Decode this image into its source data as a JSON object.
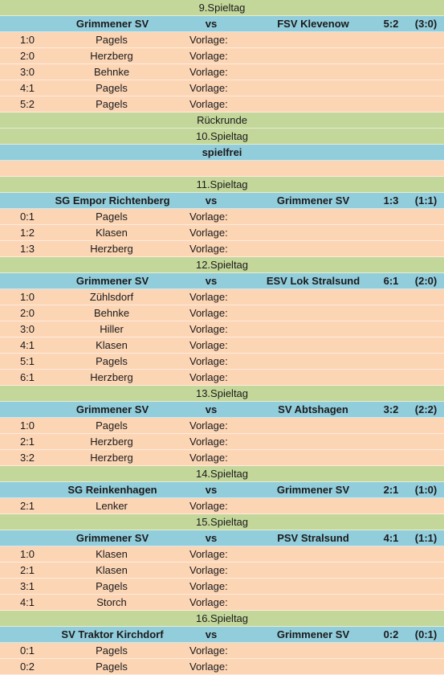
{
  "blocks": [
    {
      "type": "header",
      "text": "9.Spieltag"
    },
    {
      "type": "match",
      "home": "Grimmener SV",
      "vs": "vs",
      "away": "FSV Klevenow",
      "score": "5:2",
      "half": "(3:0)"
    },
    {
      "type": "goal",
      "score": "1:0",
      "scorer": "Pagels",
      "assist": "Vorlage:"
    },
    {
      "type": "goal",
      "score": "2:0",
      "scorer": "Herzberg",
      "assist": "Vorlage:"
    },
    {
      "type": "goal",
      "score": "3:0",
      "scorer": "Behnke",
      "assist": "Vorlage:"
    },
    {
      "type": "goal",
      "score": "4:1",
      "scorer": "Pagels",
      "assist": "Vorlage:"
    },
    {
      "type": "goal",
      "score": "5:2",
      "scorer": "Pagels",
      "assist": "Vorlage:"
    },
    {
      "type": "header",
      "text": "Rückrunde"
    },
    {
      "type": "header",
      "text": "10.Spieltag"
    },
    {
      "type": "bye",
      "text": "spielfrei"
    },
    {
      "type": "blank"
    },
    {
      "type": "header",
      "text": "11.Spieltag"
    },
    {
      "type": "match",
      "home": "SG Empor Richtenberg",
      "vs": "vs",
      "away": "Grimmener SV",
      "score": "1:3",
      "half": "(1:1)"
    },
    {
      "type": "goal",
      "score": "0:1",
      "scorer": "Pagels",
      "assist": "Vorlage:"
    },
    {
      "type": "goal",
      "score": "1:2",
      "scorer": "Klasen",
      "assist": "Vorlage:"
    },
    {
      "type": "goal",
      "score": "1:3",
      "scorer": "Herzberg",
      "assist": "Vorlage:"
    },
    {
      "type": "header",
      "text": "12.Spieltag"
    },
    {
      "type": "match",
      "home": "Grimmener SV",
      "vs": "vs",
      "away": "ESV Lok Stralsund",
      "score": "6:1",
      "half": "(2:0)"
    },
    {
      "type": "goal",
      "score": "1:0",
      "scorer": "Zühlsdorf",
      "assist": "Vorlage:"
    },
    {
      "type": "goal",
      "score": "2:0",
      "scorer": "Behnke",
      "assist": "Vorlage:"
    },
    {
      "type": "goal",
      "score": "3:0",
      "scorer": "Hiller",
      "assist": "Vorlage:"
    },
    {
      "type": "goal",
      "score": "4:1",
      "scorer": "Klasen",
      "assist": "Vorlage:"
    },
    {
      "type": "goal",
      "score": "5:1",
      "scorer": "Pagels",
      "assist": "Vorlage:"
    },
    {
      "type": "goal",
      "score": "6:1",
      "scorer": "Herzberg",
      "assist": "Vorlage:"
    },
    {
      "type": "header",
      "text": "13.Spieltag"
    },
    {
      "type": "match",
      "home": "Grimmener SV",
      "vs": "vs",
      "away": "SV Abtshagen",
      "score": "3:2",
      "half": "(2:2)"
    },
    {
      "type": "goal",
      "score": "1:0",
      "scorer": "Pagels",
      "assist": "Vorlage:"
    },
    {
      "type": "goal",
      "score": "2:1",
      "scorer": "Herzberg",
      "assist": "Vorlage:"
    },
    {
      "type": "goal",
      "score": "3:2",
      "scorer": "Herzberg",
      "assist": "Vorlage:"
    },
    {
      "type": "header",
      "text": "14.Spieltag"
    },
    {
      "type": "match",
      "home": "SG Reinkenhagen",
      "vs": "vs",
      "away": "Grimmener SV",
      "score": "2:1",
      "half": "(1:0)"
    },
    {
      "type": "goal",
      "score": "2:1",
      "scorer": "Lenker",
      "assist": "Vorlage:"
    },
    {
      "type": "header",
      "text": "15.Spieltag"
    },
    {
      "type": "match",
      "home": "Grimmener SV",
      "vs": "vs",
      "away": "PSV Stralsund",
      "score": "4:1",
      "half": "(1:1)"
    },
    {
      "type": "goal",
      "score": "1:0",
      "scorer": "Klasen",
      "assist": "Vorlage:"
    },
    {
      "type": "goal",
      "score": "2:1",
      "scorer": "Klasen",
      "assist": "Vorlage:"
    },
    {
      "type": "goal",
      "score": "3:1",
      "scorer": "Pagels",
      "assist": "Vorlage:"
    },
    {
      "type": "goal",
      "score": "4:1",
      "scorer": "Storch",
      "assist": "Vorlage:"
    },
    {
      "type": "header",
      "text": "16.Spieltag"
    },
    {
      "type": "match",
      "home": "SV Traktor Kirchdorf",
      "vs": "vs",
      "away": "Grimmener SV",
      "score": "0:2",
      "half": "(0:1)"
    },
    {
      "type": "goal",
      "score": "0:1",
      "scorer": "Pagels",
      "assist": "Vorlage:"
    },
    {
      "type": "goal",
      "score": "0:2",
      "scorer": "Pagels",
      "assist": "Vorlage:"
    }
  ]
}
